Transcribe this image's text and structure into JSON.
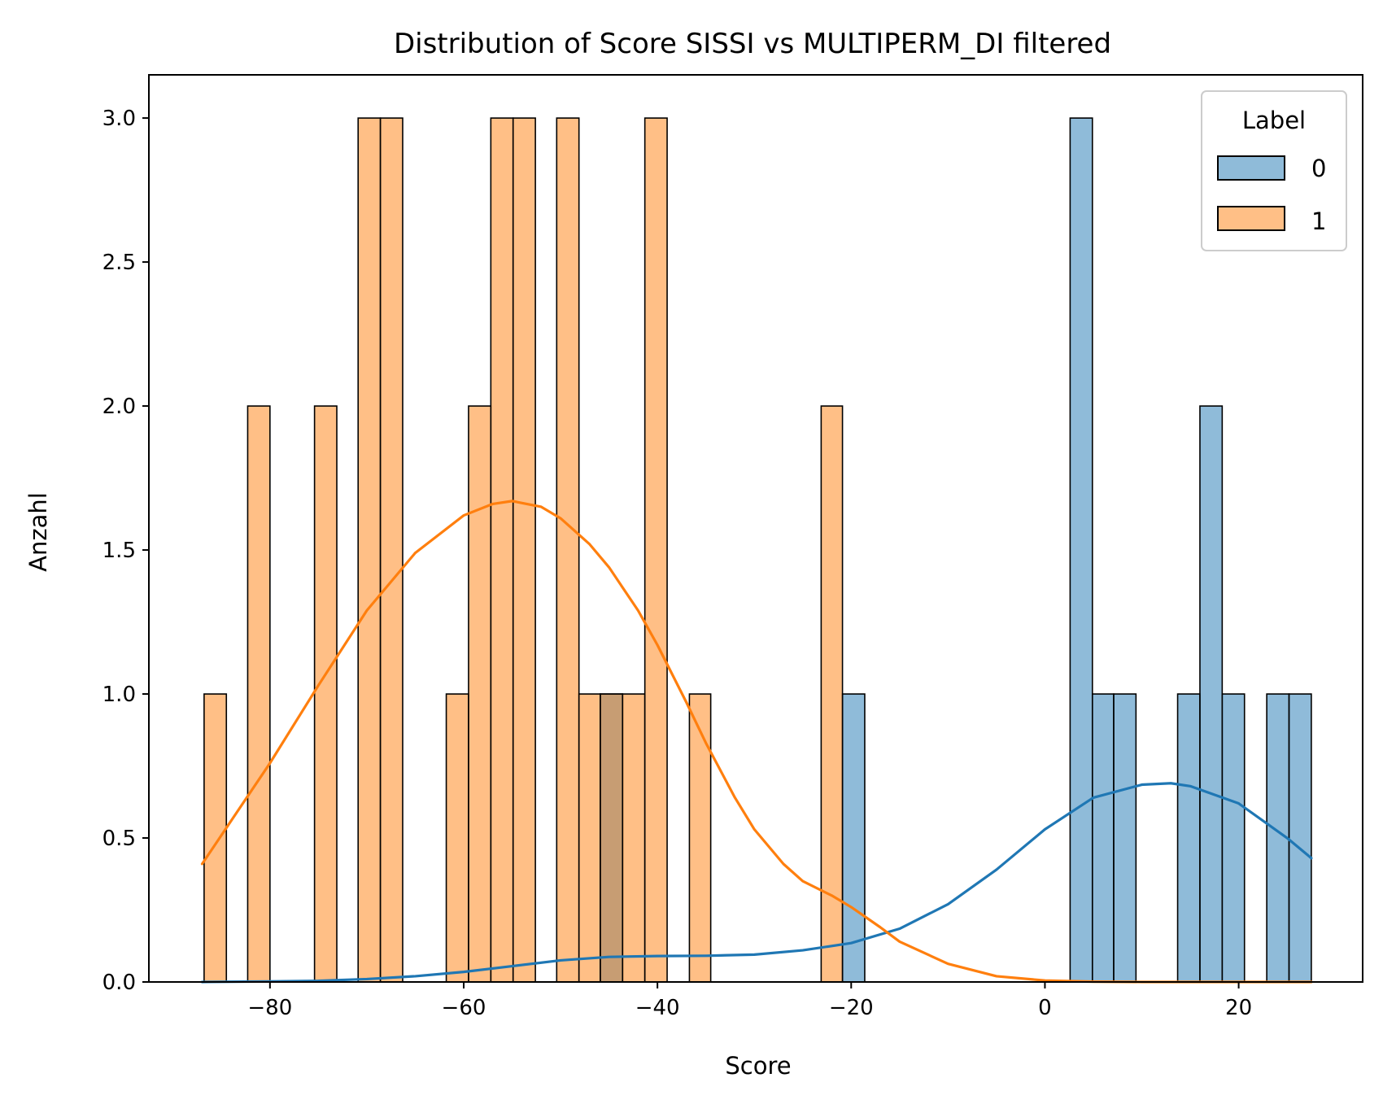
{
  "chart_data": {
    "type": "histogram",
    "title": "Distribution of Score SISSI vs MULTIPERM_DI filtered",
    "xlabel": "Score",
    "ylabel": "Anzahl",
    "xlim": [
      -92.5,
      32.8
    ],
    "ylim": [
      0,
      3.15
    ],
    "xticks": [
      -80,
      -60,
      -40,
      -20,
      0,
      20
    ],
    "xtick_labels": [
      "−80",
      "−60",
      "−40",
      "−20",
      "0",
      "20"
    ],
    "yticks": [
      0,
      0.5,
      1.0,
      1.5,
      2.0,
      2.5,
      3.0
    ],
    "ytick_labels": [
      "0.0",
      "0.5",
      "1.0",
      "1.5",
      "2.0",
      "2.5",
      "3.0"
    ],
    "grid": false,
    "legend": {
      "title": "Label",
      "placement": "top-right"
    },
    "series": [
      {
        "name": "0",
        "color": "#1f77b4",
        "fill_color": "#8db7d8",
        "bins": [
          {
            "x0": -45.9,
            "x1": -43.6,
            "count": 1
          },
          {
            "x0": -20.9,
            "x1": -18.6,
            "count": 1
          },
          {
            "x0": 2.6,
            "x1": 4.9,
            "count": 3
          },
          {
            "x0": 4.9,
            "x1": 7.1,
            "count": 1
          },
          {
            "x0": 7.1,
            "x1": 9.4,
            "count": 1
          },
          {
            "x0": 13.7,
            "x1": 16.0,
            "count": 1
          },
          {
            "x0": 16.0,
            "x1": 18.3,
            "count": 2
          },
          {
            "x0": 18.3,
            "x1": 20.6,
            "count": 1
          },
          {
            "x0": 22.9,
            "x1": 25.2,
            "count": 1
          },
          {
            "x0": 25.2,
            "x1": 27.5,
            "count": 1
          }
        ],
        "kde": {
          "x": [
            -87,
            -80,
            -75,
            -70,
            -65,
            -60,
            -55,
            -50,
            -45,
            -40,
            -35,
            -30,
            -25,
            -20,
            -15,
            -10,
            -5,
            0,
            5,
            10,
            13,
            15,
            20,
            25,
            27.5
          ],
          "y": [
            0.0,
            0.002,
            0.004,
            0.01,
            0.02,
            0.035,
            0.055,
            0.075,
            0.087,
            0.09,
            0.091,
            0.095,
            0.11,
            0.135,
            0.185,
            0.27,
            0.39,
            0.53,
            0.64,
            0.685,
            0.69,
            0.68,
            0.62,
            0.5,
            0.43
          ]
        }
      },
      {
        "name": "1",
        "color": "#ff7f0e",
        "fill_color": "#ffbf86",
        "bins": [
          {
            "x0": -86.8,
            "x1": -84.5,
            "count": 1
          },
          {
            "x0": -82.3,
            "x1": -80.0,
            "count": 2
          },
          {
            "x0": -75.4,
            "x1": -73.1,
            "count": 2
          },
          {
            "x0": -70.9,
            "x1": -68.6,
            "count": 3
          },
          {
            "x0": -68.6,
            "x1": -66.3,
            "count": 3
          },
          {
            "x0": -61.8,
            "x1": -59.5,
            "count": 1
          },
          {
            "x0": -59.5,
            "x1": -57.2,
            "count": 2
          },
          {
            "x0": -57.2,
            "x1": -54.9,
            "count": 3
          },
          {
            "x0": -54.9,
            "x1": -52.6,
            "count": 3
          },
          {
            "x0": -50.4,
            "x1": -48.1,
            "count": 3
          },
          {
            "x0": -48.1,
            "x1": -45.9,
            "count": 1
          },
          {
            "x0": -45.9,
            "x1": -43.6,
            "count": 1
          },
          {
            "x0": -43.6,
            "x1": -41.3,
            "count": 1
          },
          {
            "x0": -41.3,
            "x1": -39.0,
            "count": 3
          },
          {
            "x0": -36.7,
            "x1": -34.5,
            "count": 1
          },
          {
            "x0": -23.1,
            "x1": -20.9,
            "count": 2
          }
        ],
        "kde": {
          "x": [
            -87,
            -84,
            -80,
            -75,
            -70,
            -65,
            -60,
            -57,
            -55,
            -52,
            -50,
            -47,
            -45,
            -42,
            -40,
            -37,
            -35,
            -32,
            -30,
            -27,
            -25,
            -22,
            -20,
            -17,
            -15,
            -10,
            -5,
            0,
            5,
            10,
            20,
            27.5
          ],
          "y": [
            0.41,
            0.56,
            0.76,
            1.03,
            1.29,
            1.49,
            1.62,
            1.66,
            1.67,
            1.65,
            1.61,
            1.52,
            1.44,
            1.29,
            1.17,
            0.97,
            0.83,
            0.64,
            0.53,
            0.41,
            0.35,
            0.3,
            0.26,
            0.19,
            0.14,
            0.063,
            0.02,
            0.005,
            0.001,
            0.0,
            0.0,
            0.0
          ]
        }
      }
    ]
  }
}
